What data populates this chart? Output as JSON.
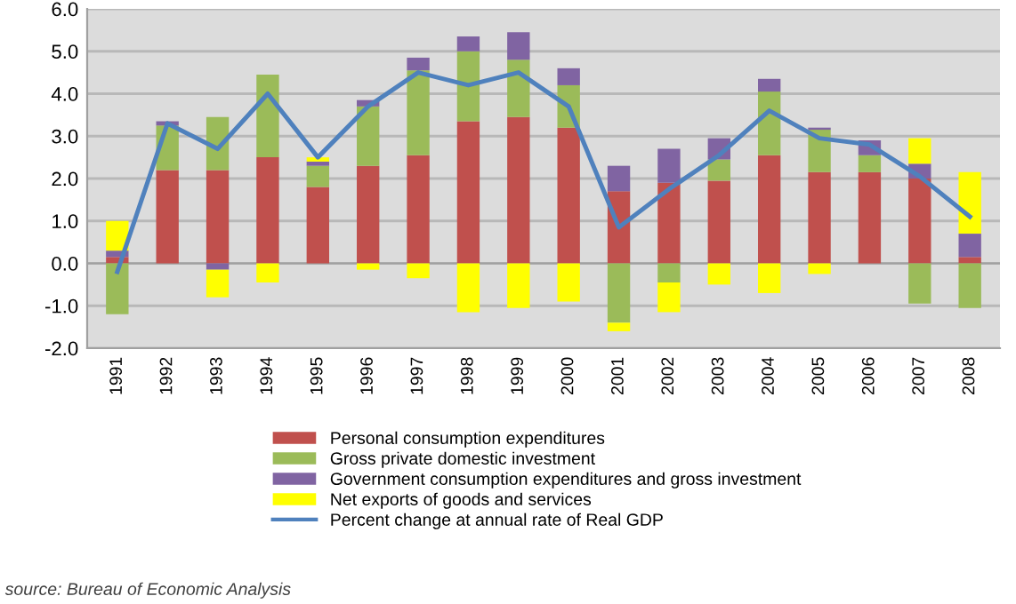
{
  "chart_data": {
    "type": "bar",
    "stacked": true,
    "categories": [
      "1991",
      "1992",
      "1993",
      "1994",
      "1995",
      "1996",
      "1997",
      "1998",
      "1999",
      "2000",
      "2001",
      "2002",
      "2003",
      "2004",
      "2005",
      "2006",
      "2007",
      "2008"
    ],
    "series": [
      {
        "name": "Personal consumption expenditures",
        "color": "#c0504d",
        "values": [
          0.15,
          2.2,
          2.2,
          2.5,
          1.8,
          2.3,
          2.55,
          3.35,
          3.45,
          3.2,
          1.7,
          1.9,
          1.95,
          2.55,
          2.15,
          2.15,
          2.0,
          0.15
        ]
      },
      {
        "name": "Gross private domestic investment",
        "color": "#9bbb59",
        "values": [
          -1.2,
          1.05,
          1.25,
          1.95,
          0.5,
          1.4,
          2.0,
          1.65,
          1.35,
          1.0,
          -1.4,
          -0.45,
          0.5,
          1.5,
          1.0,
          0.4,
          -0.95,
          -1.05
        ]
      },
      {
        "name": "Government consumption expenditures and gross investment",
        "color": "#8064a2",
        "values": [
          0.15,
          0.1,
          -0.15,
          0.0,
          0.1,
          0.15,
          0.3,
          0.35,
          0.65,
          0.4,
          0.6,
          0.8,
          0.5,
          0.3,
          0.05,
          0.35,
          0.35,
          0.55
        ]
      },
      {
        "name": "Net exports of goods and services",
        "color": "#ffff00",
        "values": [
          0.7,
          0.0,
          -0.65,
          -0.45,
          0.1,
          -0.15,
          -0.35,
          -1.15,
          -1.05,
          -0.9,
          -0.2,
          -0.7,
          -0.5,
          -0.7,
          -0.25,
          0.0,
          0.6,
          1.45
        ]
      },
      {
        "name": "Percent change at annual rate of Real GDP",
        "color": "#4f81bd",
        "type": "line",
        "values": [
          -0.2,
          3.3,
          2.7,
          4.0,
          2.5,
          3.7,
          4.5,
          4.2,
          4.5,
          3.7,
          0.85,
          1.75,
          2.55,
          3.6,
          2.95,
          2.8,
          2.05,
          1.1
        ]
      }
    ],
    "ylim": [
      -2,
      6
    ],
    "yticks": [
      {
        "value": -2,
        "label": "-2.0"
      },
      {
        "value": -1,
        "label": "-1.0"
      },
      {
        "value": 0,
        "label": "0.0"
      },
      {
        "value": 1,
        "label": "1.0"
      },
      {
        "value": 2,
        "label": "2.0"
      },
      {
        "value": 3,
        "label": "3.0"
      },
      {
        "value": 4,
        "label": "4.0"
      },
      {
        "value": 5,
        "label": "5.0"
      },
      {
        "value": 6,
        "label": "6.0"
      }
    ],
    "grid": "y",
    "legend": "bottom",
    "annotations": [
      "source: Bureau of Economic Analysis"
    ]
  }
}
